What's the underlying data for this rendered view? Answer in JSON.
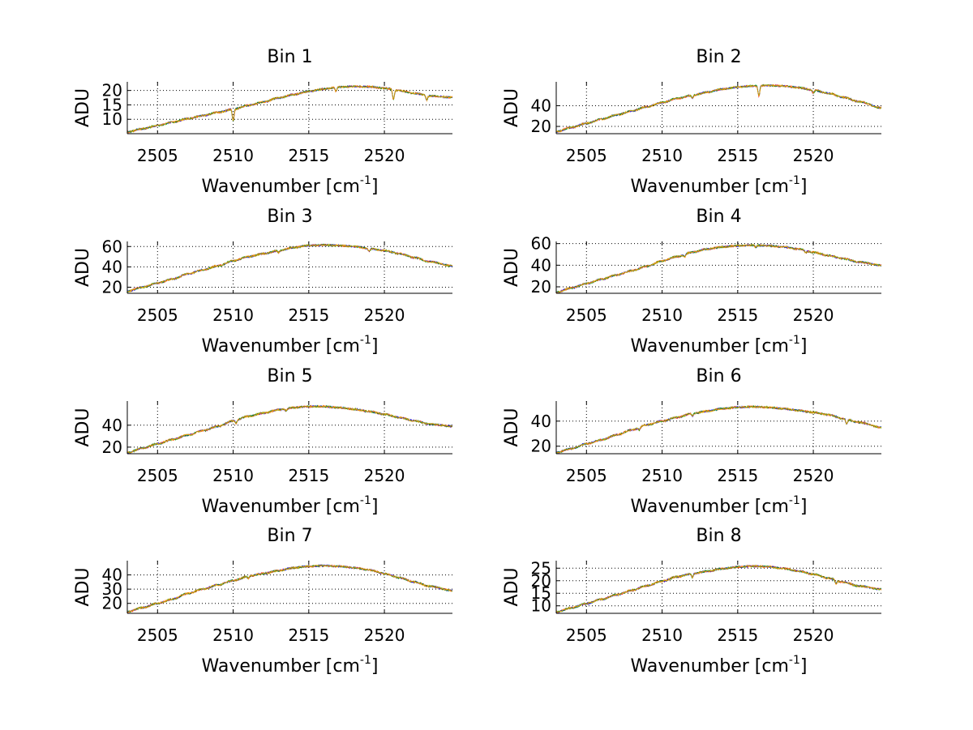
{
  "chart_data": [
    {
      "type": "line",
      "title": "Bin 1",
      "xlabel": "Wavenumber [cm",
      "xlabel_sup": "-1",
      "xlabel_end": "]",
      "ylabel": "ADU",
      "xlim": [
        2503.0,
        2524.5
      ],
      "ylim": [
        5,
        23
      ],
      "xticks": [
        2505,
        2510,
        2515,
        2520
      ],
      "yticks": [
        10,
        15,
        20
      ],
      "grid": true,
      "colors": [
        "#ff0000",
        "#0000ff",
        "#00a000",
        "#ffa000"
      ],
      "x": [
        2503,
        2504,
        2505,
        2506,
        2507,
        2508,
        2509,
        2510,
        2511,
        2512,
        2513,
        2514,
        2515,
        2516,
        2517,
        2518,
        2519,
        2520,
        2521,
        2522,
        2523,
        2524.5
      ],
      "y": [
        5.6,
        6.7,
        7.8,
        9.0,
        10.2,
        11.3,
        12.4,
        13.5,
        14.8,
        16.0,
        17.4,
        18.6,
        19.7,
        20.5,
        21.2,
        21.4,
        21.3,
        20.8,
        19.9,
        19.0,
        18.1,
        17.6
      ],
      "dips": [
        [
          2510.0,
          4.0
        ],
        [
          2520.6,
          3.5
        ],
        [
          2516.8,
          1.5
        ],
        [
          2522.8,
          1.5
        ]
      ]
    },
    {
      "type": "line",
      "title": "Bin 2",
      "xlabel": "Wavenumber [cm",
      "xlabel_sup": "-1",
      "xlabel_end": "]",
      "ylabel": "ADU",
      "xlim": [
        2503.0,
        2524.5
      ],
      "ylim": [
        13,
        63
      ],
      "xticks": [
        2505,
        2510,
        2515,
        2520
      ],
      "yticks": [
        20,
        40
      ],
      "grid": true,
      "colors": [
        "#ff0000",
        "#0000ff",
        "#00a000",
        "#ffa000"
      ],
      "x": [
        2503,
        2504,
        2505,
        2506,
        2507,
        2508,
        2509,
        2510,
        2511,
        2512,
        2513,
        2514,
        2515,
        2516,
        2517,
        2518,
        2519,
        2520,
        2521,
        2522,
        2523,
        2524.5
      ],
      "y": [
        15,
        19,
        23,
        27,
        31,
        35,
        39,
        43,
        47,
        50,
        53,
        56,
        58,
        59,
        59.5,
        59,
        57.5,
        55,
        52,
        48,
        44,
        38
      ],
      "dips": [
        [
          2516.4,
          10.0
        ],
        [
          2512.0,
          3.0
        ],
        [
          2520.0,
          3.0
        ]
      ]
    },
    {
      "type": "line",
      "title": "Bin 3",
      "xlabel": "Wavenumber [cm",
      "xlabel_sup": "-1",
      "xlabel_end": "]",
      "ylabel": "ADU",
      "xlim": [
        2503.0,
        2524.5
      ],
      "ylim": [
        14,
        65
      ],
      "xticks": [
        2505,
        2510,
        2515,
        2520
      ],
      "yticks": [
        20,
        40,
        60
      ],
      "grid": true,
      "colors": [
        "#ff0000",
        "#0000ff",
        "#00a000",
        "#ffa000"
      ],
      "x": [
        2503,
        2504,
        2505,
        2506,
        2507,
        2508,
        2509,
        2510,
        2511,
        2512,
        2513,
        2514,
        2515,
        2516,
        2517,
        2518,
        2519,
        2520,
        2521,
        2522,
        2523,
        2524.5
      ],
      "y": [
        16,
        20,
        24,
        28,
        33,
        37,
        41,
        46,
        50,
        53,
        56,
        59,
        61,
        61.5,
        61,
        60,
        58,
        56,
        53,
        49,
        45,
        41
      ],
      "dips": [
        [
          2519.0,
          3.0
        ],
        [
          2513.0,
          2.0
        ]
      ]
    },
    {
      "type": "line",
      "title": "Bin 4",
      "xlabel": "Wavenumber [cm",
      "xlabel_sup": "-1",
      "xlabel_end": "]",
      "ylabel": "ADU",
      "xlim": [
        2503.0,
        2524.5
      ],
      "ylim": [
        14,
        62
      ],
      "xticks": [
        2505,
        2510,
        2515,
        2520
      ],
      "yticks": [
        20,
        40,
        60
      ],
      "grid": true,
      "colors": [
        "#ff0000",
        "#0000ff",
        "#00a000",
        "#ffa000"
      ],
      "x": [
        2503,
        2504,
        2505,
        2506,
        2507,
        2508,
        2509,
        2510,
        2511,
        2512,
        2513,
        2514,
        2515,
        2516,
        2517,
        2518,
        2519,
        2520,
        2521,
        2522,
        2523,
        2524.5
      ],
      "y": [
        15,
        19,
        23,
        27,
        31,
        35,
        39,
        44,
        48,
        52,
        55,
        57,
        58,
        58.5,
        58,
        57,
        55,
        52,
        49,
        46,
        43,
        40
      ],
      "dips": [
        [
          2511.5,
          2.5
        ],
        [
          2516.2,
          2.0
        ],
        [
          2519.5,
          2.0
        ]
      ]
    },
    {
      "type": "line",
      "title": "Bin 5",
      "xlabel": "Wavenumber [cm",
      "xlabel_sup": "-1",
      "xlabel_end": "]",
      "ylabel": "ADU",
      "xlim": [
        2503.0,
        2524.5
      ],
      "ylim": [
        14,
        62
      ],
      "xticks": [
        2505,
        2510,
        2515,
        2520
      ],
      "yticks": [
        20,
        40
      ],
      "grid": true,
      "colors": [
        "#ff0000",
        "#0000ff",
        "#00a000",
        "#ffa000"
      ],
      "x": [
        2503,
        2504,
        2505,
        2506,
        2507,
        2508,
        2509,
        2510,
        2511,
        2512,
        2513,
        2514,
        2515,
        2516,
        2517,
        2518,
        2519,
        2520,
        2521,
        2522,
        2523,
        2524.5
      ],
      "y": [
        15,
        19,
        23,
        27,
        31,
        35,
        39,
        44,
        48,
        51,
        54,
        56,
        57,
        57,
        56,
        54.5,
        52.5,
        50,
        47,
        44,
        41,
        39
      ],
      "dips": [
        [
          2510.2,
          2.5
        ],
        [
          2513.5,
          2.0
        ]
      ]
    },
    {
      "type": "line",
      "title": "Bin 6",
      "xlabel": "Wavenumber [cm",
      "xlabel_sup": "-1",
      "xlabel_end": "]",
      "ylabel": "ADU",
      "xlim": [
        2503.0,
        2524.5
      ],
      "ylim": [
        14,
        56
      ],
      "xticks": [
        2505,
        2510,
        2515,
        2520
      ],
      "yticks": [
        20,
        40
      ],
      "grid": true,
      "colors": [
        "#ff0000",
        "#0000ff",
        "#00a000",
        "#ffa000"
      ],
      "x": [
        2503,
        2504,
        2505,
        2506,
        2507,
        2508,
        2509,
        2510,
        2511,
        2512,
        2513,
        2514,
        2515,
        2516,
        2517,
        2518,
        2519,
        2520,
        2521,
        2522,
        2523,
        2524.5
      ],
      "y": [
        15,
        18,
        22,
        25,
        29,
        33,
        37,
        40,
        43,
        46,
        48,
        50,
        51,
        51.5,
        51,
        50,
        48.5,
        47,
        45,
        42,
        39,
        35
      ],
      "dips": [
        [
          2522.2,
          4.0
        ],
        [
          2512.0,
          2.0
        ],
        [
          2508.5,
          2.0
        ]
      ]
    },
    {
      "type": "line",
      "title": "Bin 7",
      "xlabel": "Wavenumber [cm",
      "xlabel_sup": "-1",
      "xlabel_end": "]",
      "ylabel": "ADU",
      "xlim": [
        2503.0,
        2524.5
      ],
      "ylim": [
        13,
        50
      ],
      "xticks": [
        2505,
        2510,
        2515,
        2520
      ],
      "yticks": [
        20,
        30,
        40
      ],
      "grid": true,
      "colors": [
        "#ff0000",
        "#0000ff",
        "#00a000",
        "#ffa000"
      ],
      "x": [
        2503,
        2504,
        2505,
        2506,
        2507,
        2508,
        2509,
        2510,
        2511,
        2512,
        2513,
        2514,
        2515,
        2516,
        2517,
        2518,
        2519,
        2520,
        2521,
        2522,
        2523,
        2524.5
      ],
      "y": [
        14,
        17,
        20,
        23,
        27,
        30,
        33,
        36,
        39,
        41,
        43,
        45,
        46,
        46.5,
        46,
        45,
        43.5,
        41,
        38,
        35,
        32,
        29
      ],
      "dips": [
        [
          2511.0,
          1.5
        ]
      ]
    },
    {
      "type": "line",
      "title": "Bin 8",
      "xlabel": "Wavenumber [cm",
      "xlabel_sup": "-1",
      "xlabel_end": "]",
      "ylabel": "ADU",
      "xlim": [
        2503.0,
        2524.5
      ],
      "ylim": [
        7,
        28
      ],
      "xticks": [
        2505,
        2510,
        2515,
        2520
      ],
      "yticks": [
        10,
        15,
        20,
        25
      ],
      "grid": true,
      "colors": [
        "#ff0000",
        "#0000ff",
        "#00a000",
        "#ffa000"
      ],
      "x": [
        2503,
        2504,
        2505,
        2506,
        2507,
        2508,
        2509,
        2510,
        2511,
        2512,
        2513,
        2514,
        2515,
        2516,
        2517,
        2518,
        2519,
        2520,
        2521,
        2522,
        2523,
        2524.5
      ],
      "y": [
        7.5,
        9.2,
        10.9,
        12.6,
        14.4,
        16.2,
        18.0,
        19.8,
        21.6,
        22.8,
        23.8,
        24.8,
        25.5,
        25.8,
        25.6,
        24.9,
        23.9,
        22.6,
        21.0,
        19.4,
        17.9,
        16.6
      ],
      "dips": [
        [
          2512.0,
          1.5
        ],
        [
          2521.5,
          1.5
        ]
      ]
    }
  ]
}
